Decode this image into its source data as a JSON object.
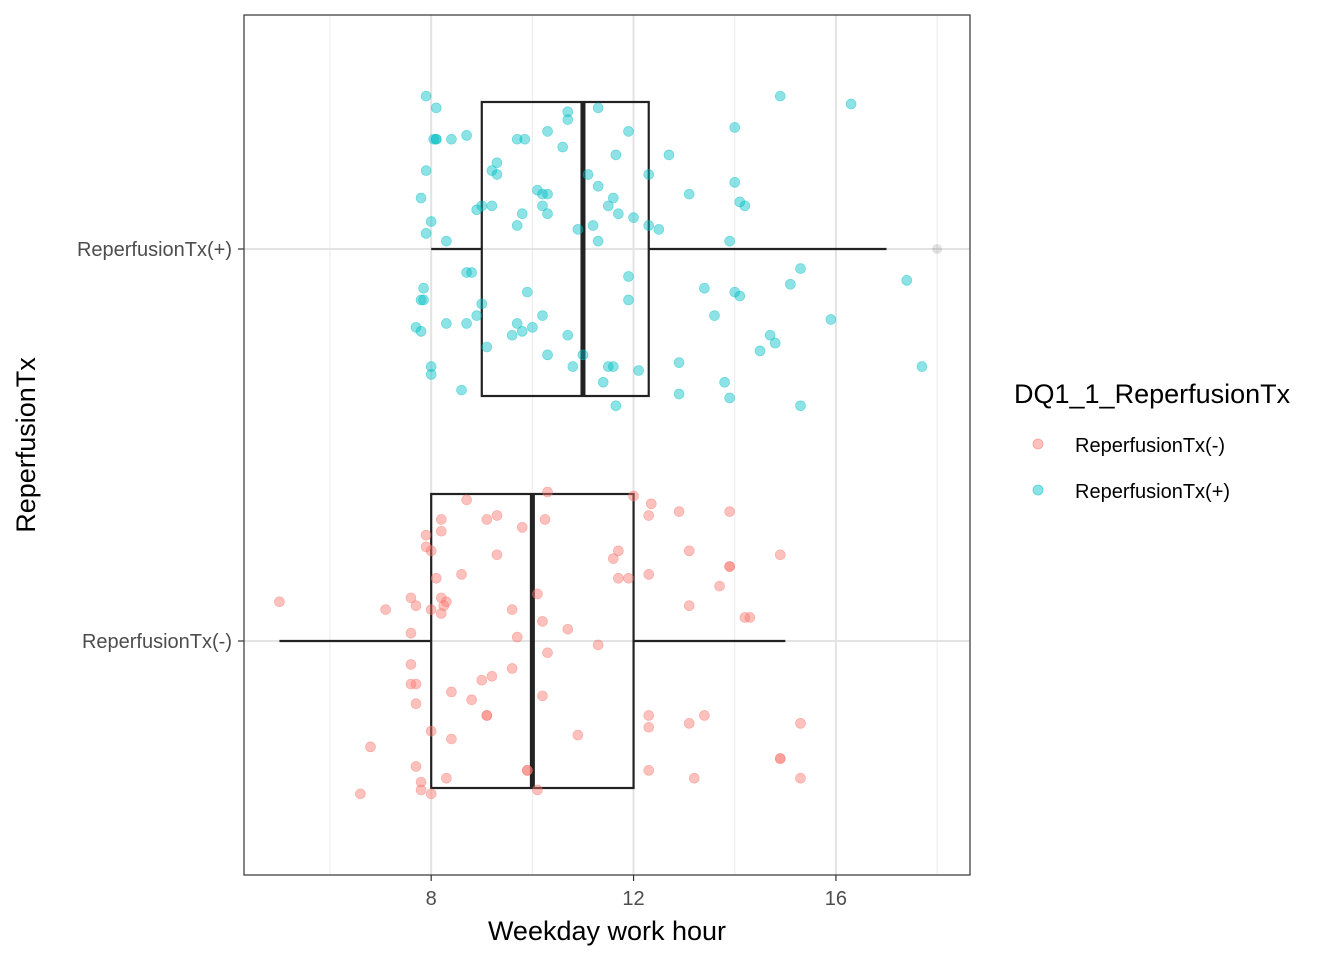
{
  "chart_data": {
    "type": "boxplot",
    "orientation": "horizontal",
    "xlabel": "Weekday work hour",
    "ylabel": "ReperfusionTx",
    "x_ticks": [
      8,
      12,
      16
    ],
    "xlim": [
      4.3,
      18.65
    ],
    "grid": true,
    "legend": {
      "title": "DQ1_1_ReperfusionTx",
      "position": "right",
      "entries": [
        "ReperfusionTx(-)",
        "ReperfusionTx(+)"
      ]
    },
    "categories": [
      "ReperfusionTx(-)",
      "ReperfusionTx(+)"
    ],
    "series": [
      {
        "name": "ReperfusionTx(-)",
        "color": "#F8766D",
        "box": {
          "whisker_low": 5,
          "q1": 8,
          "median": 10,
          "q3": 12,
          "whisker_high": 15
        },
        "outliers": [],
        "points": [
          [
            5.0,
            0.1
          ],
          [
            7.1,
            0.08
          ],
          [
            6.8,
            -0.27
          ],
          [
            6.6,
            -0.39
          ],
          [
            7.6,
            0.11
          ],
          [
            7.7,
            0.09
          ],
          [
            7.6,
            0.02
          ],
          [
            7.6,
            -0.06
          ],
          [
            7.7,
            -0.11
          ],
          [
            7.6,
            -0.11
          ],
          [
            7.7,
            -0.16
          ],
          [
            7.7,
            -0.32
          ],
          [
            7.8,
            -0.36
          ],
          [
            7.8,
            -0.38
          ],
          [
            7.9,
            0.24
          ],
          [
            7.9,
            0.27
          ],
          [
            8.0,
            0.23
          ],
          [
            8.0,
            -0.23
          ],
          [
            8.0,
            -0.39
          ],
          [
            8.0,
            0.08
          ],
          [
            8.1,
            0.16
          ],
          [
            8.2,
            0.11
          ],
          [
            8.2,
            0.31
          ],
          [
            8.2,
            0.28
          ],
          [
            8.25,
            0.09
          ],
          [
            8.3,
            0.1
          ],
          [
            8.2,
            0.07
          ],
          [
            8.3,
            -0.35
          ],
          [
            8.4,
            -0.13
          ],
          [
            8.4,
            -0.25
          ],
          [
            8.6,
            0.17
          ],
          [
            8.7,
            0.36
          ],
          [
            8.8,
            -0.15
          ],
          [
            9.0,
            -0.1
          ],
          [
            9.1,
            -0.19
          ],
          [
            9.1,
            -0.19
          ],
          [
            9.1,
            0.31
          ],
          [
            9.2,
            -0.09
          ],
          [
            9.3,
            0.22
          ],
          [
            9.3,
            0.32
          ],
          [
            9.6,
            0.08
          ],
          [
            9.6,
            -0.07
          ],
          [
            9.7,
            0.01
          ],
          [
            9.8,
            0.29
          ],
          [
            9.9,
            -0.33
          ],
          [
            9.9,
            -0.33
          ],
          [
            10.1,
            -0.38
          ],
          [
            10.1,
            0.12
          ],
          [
            10.2,
            -0.14
          ],
          [
            10.2,
            0.05
          ],
          [
            10.25,
            0.31
          ],
          [
            10.3,
            -0.03
          ],
          [
            10.3,
            0.38
          ],
          [
            10.7,
            0.03
          ],
          [
            10.9,
            -0.24
          ],
          [
            11.3,
            -0.01
          ],
          [
            11.6,
            0.21
          ],
          [
            11.7,
            0.16
          ],
          [
            11.7,
            0.23
          ],
          [
            11.9,
            0.16
          ],
          [
            12.0,
            0.37
          ],
          [
            12.3,
            -0.19
          ],
          [
            12.3,
            -0.22
          ],
          [
            12.3,
            0.32
          ],
          [
            12.3,
            -0.33
          ],
          [
            12.3,
            0.17
          ],
          [
            12.35,
            0.35
          ],
          [
            12.9,
            0.33
          ],
          [
            13.1,
            0.09
          ],
          [
            13.1,
            0.23
          ],
          [
            13.1,
            -0.21
          ],
          [
            13.2,
            -0.35
          ],
          [
            13.4,
            -0.19
          ],
          [
            13.7,
            0.14
          ],
          [
            13.9,
            0.19
          ],
          [
            13.9,
            0.19
          ],
          [
            13.9,
            0.33
          ],
          [
            14.2,
            0.06
          ],
          [
            14.3,
            0.06
          ],
          [
            14.9,
            -0.3
          ],
          [
            14.9,
            -0.3
          ],
          [
            14.9,
            0.22
          ],
          [
            15.3,
            -0.21
          ],
          [
            15.3,
            -0.35
          ]
        ]
      },
      {
        "name": "ReperfusionTx(+)",
        "color": "#00BFC4",
        "box": {
          "whisker_low": 8,
          "q1": 9,
          "median": 11,
          "q3": 12.3,
          "whisker_high": 17
        },
        "outliers": [
          18
        ],
        "points": [
          [
            7.7,
            -0.2
          ],
          [
            7.8,
            -0.13
          ],
          [
            7.8,
            -0.21
          ],
          [
            7.85,
            -0.13
          ],
          [
            7.8,
            0.13
          ],
          [
            7.85,
            -0.1
          ],
          [
            7.9,
            0.39
          ],
          [
            7.9,
            0.2
          ],
          [
            7.9,
            0.04
          ],
          [
            8.0,
            0.07
          ],
          [
            8.0,
            -0.32
          ],
          [
            8.0,
            -0.3
          ],
          [
            8.05,
            0.28
          ],
          [
            8.1,
            0.28
          ],
          [
            8.1,
            0.36
          ],
          [
            8.1,
            0.28
          ],
          [
            8.3,
            -0.19
          ],
          [
            8.3,
            0.02
          ],
          [
            8.4,
            0.28
          ],
          [
            8.6,
            -0.36
          ],
          [
            8.7,
            0.29
          ],
          [
            8.7,
            -0.19
          ],
          [
            8.7,
            -0.06
          ],
          [
            8.8,
            -0.06
          ],
          [
            8.9,
            0.1
          ],
          [
            8.9,
            -0.17
          ],
          [
            9.0,
            -0.14
          ],
          [
            9.0,
            0.11
          ],
          [
            9.1,
            -0.25
          ],
          [
            9.2,
            0.11
          ],
          [
            9.2,
            0.2
          ],
          [
            9.3,
            0.19
          ],
          [
            9.3,
            0.22
          ],
          [
            9.6,
            -0.22
          ],
          [
            9.7,
            0.06
          ],
          [
            9.7,
            -0.19
          ],
          [
            9.7,
            0.28
          ],
          [
            9.8,
            -0.21
          ],
          [
            9.8,
            0.09
          ],
          [
            9.85,
            0.28
          ],
          [
            9.9,
            -0.11
          ],
          [
            10.0,
            -0.2
          ],
          [
            10.1,
            0.15
          ],
          [
            10.2,
            0.11
          ],
          [
            10.2,
            -0.17
          ],
          [
            10.2,
            0.14
          ],
          [
            10.3,
            0.14
          ],
          [
            10.3,
            0.09
          ],
          [
            10.3,
            -0.27
          ],
          [
            10.3,
            0.3
          ],
          [
            10.6,
            0.26
          ],
          [
            10.7,
            0.33
          ],
          [
            10.7,
            0.35
          ],
          [
            10.7,
            -0.22
          ],
          [
            10.8,
            -0.3
          ],
          [
            10.9,
            0.05
          ],
          [
            11.0,
            -0.27
          ],
          [
            11.1,
            0.19
          ],
          [
            11.2,
            0.06
          ],
          [
            11.3,
            0.36
          ],
          [
            11.3,
            0.16
          ],
          [
            11.3,
            0.02
          ],
          [
            11.4,
            -0.34
          ],
          [
            11.5,
            0.11
          ],
          [
            11.5,
            -0.3
          ],
          [
            11.6,
            0.13
          ],
          [
            11.6,
            -0.3
          ],
          [
            11.65,
            -0.4
          ],
          [
            11.65,
            0.24
          ],
          [
            11.7,
            0.09
          ],
          [
            11.9,
            -0.07
          ],
          [
            11.9,
            -0.13
          ],
          [
            11.9,
            0.3
          ],
          [
            12.0,
            0.08
          ],
          [
            12.1,
            -0.31
          ],
          [
            12.3,
            0.19
          ],
          [
            12.3,
            0.06
          ],
          [
            12.5,
            0.05
          ],
          [
            12.7,
            0.24
          ],
          [
            12.9,
            -0.29
          ],
          [
            12.9,
            -0.37
          ],
          [
            13.1,
            0.14
          ],
          [
            13.4,
            -0.1
          ],
          [
            13.6,
            -0.17
          ],
          [
            13.8,
            -0.34
          ],
          [
            13.9,
            -0.38
          ],
          [
            13.9,
            0.02
          ],
          [
            14.0,
            0.31
          ],
          [
            14.0,
            0.17
          ],
          [
            14.1,
            0.12
          ],
          [
            14.0,
            -0.11
          ],
          [
            14.1,
            -0.12
          ],
          [
            14.2,
            0.11
          ],
          [
            14.5,
            -0.26
          ],
          [
            14.7,
            -0.22
          ],
          [
            14.8,
            -0.24
          ],
          [
            14.9,
            0.39
          ],
          [
            15.1,
            -0.09
          ],
          [
            15.3,
            -0.05
          ],
          [
            15.3,
            -0.4
          ],
          [
            15.9,
            -0.18
          ],
          [
            16.3,
            0.37
          ],
          [
            17.4,
            -0.08
          ],
          [
            17.7,
            -0.3
          ]
        ]
      }
    ]
  }
}
